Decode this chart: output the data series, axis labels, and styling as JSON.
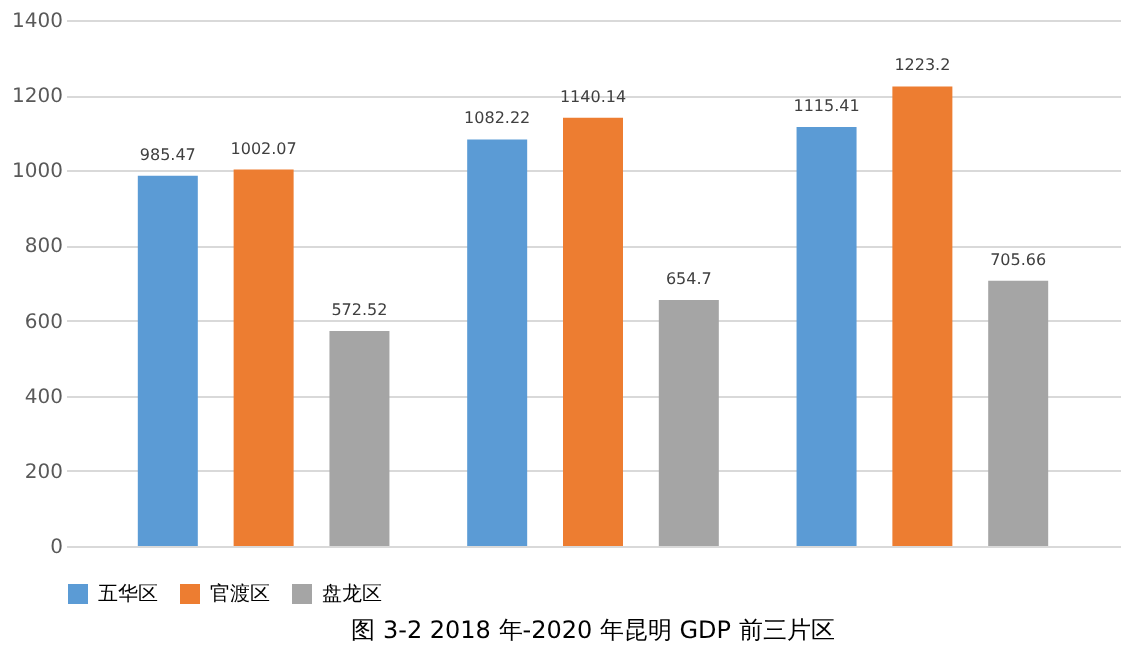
{
  "chart_data": {
    "type": "bar",
    "categories": [
      null,
      null,
      null
    ],
    "series": [
      {
        "name": "五华区",
        "color": "#5b9bd5",
        "values": [
          985.47,
          1082.22,
          1115.41
        ]
      },
      {
        "name": "官渡区",
        "color": "#ed7d31",
        "values": [
          1002.07,
          1140.14,
          1223.2
        ]
      },
      {
        "name": "盘龙区",
        "color": "#a5a5a5",
        "values": [
          572.52,
          654.7,
          705.66
        ]
      }
    ],
    "ylim": [
      0,
      1400
    ],
    "yticks": [
      0,
      200,
      400,
      600,
      800,
      1000,
      1200,
      1400
    ],
    "grid": "y",
    "legend": "bottom",
    "data_labels": true,
    "tick_labels": "y",
    "annotations": [
      "图 3-2    2018 年-2020 年昆明 GDP 前三片区"
    ]
  }
}
